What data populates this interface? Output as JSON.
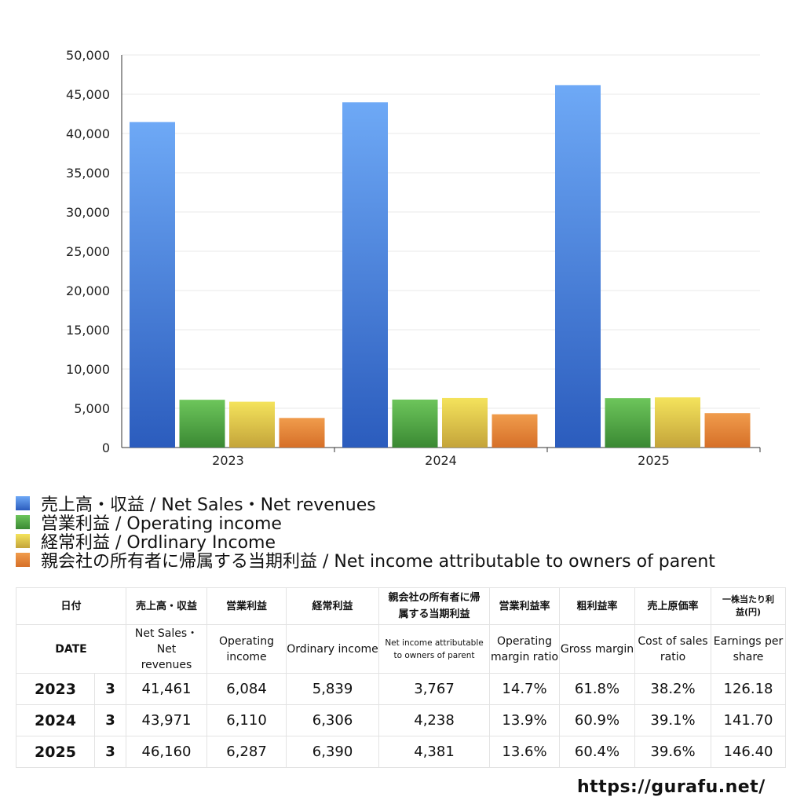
{
  "chart_data": {
    "type": "bar",
    "categories": [
      "2023",
      "2024",
      "2025"
    ],
    "ylim": [
      0,
      50000
    ],
    "yticks": [
      "0",
      "5,000",
      "10,000",
      "15,000",
      "20,000",
      "25,000",
      "30,000",
      "35,000",
      "40,000",
      "45,000",
      "50,000"
    ],
    "grid": true,
    "legend_position": "bottom",
    "series": [
      {
        "name": "売上高・収益 / Net Sales・Net revenues",
        "values": [
          41461,
          43971,
          46160
        ],
        "color": "#4a85e0"
      },
      {
        "name": "営業利益 / Operating income",
        "values": [
          6084,
          6110,
          6287
        ],
        "color": "#55a845"
      },
      {
        "name": "経常利益 / Ordlinary Income",
        "values": [
          5839,
          6306,
          6390
        ],
        "color": "#e1c84a"
      },
      {
        "name": "親会社の所有者に帰属する当期利益 / Net income attributable to owners of parent",
        "values": [
          3767,
          4238,
          4381
        ],
        "color": "#e5863a"
      }
    ]
  },
  "table": {
    "header_jp": [
      "日付",
      "売上高・収益",
      "営業利益",
      "経常利益",
      "親会社の所有者に帰属する当期利益",
      "営業利益率",
      "粗利益率",
      "売上原価率",
      "一株当たり利益(円)"
    ],
    "header_en": [
      "DATE",
      "Net Sales・Net revenues",
      "Operating income",
      "Ordinary income",
      "Net income attributable to owners of parent",
      "Operating margin ratio",
      "Gross margin",
      "Cost of sales ratio",
      "Earnings per share"
    ],
    "rows": [
      [
        "2023",
        "3",
        "41,461",
        "6,084",
        "5,839",
        "3,767",
        "14.7%",
        "61.8%",
        "38.2%",
        "126.18"
      ],
      [
        "2024",
        "3",
        "43,971",
        "6,110",
        "6,306",
        "4,238",
        "13.9%",
        "60.9%",
        "39.1%",
        "141.70"
      ],
      [
        "2025",
        "3",
        "46,160",
        "6,287",
        "6,390",
        "4,381",
        "13.6%",
        "60.4%",
        "39.6%",
        "146.40"
      ]
    ]
  },
  "footer_url": "https://gurafu.net/"
}
